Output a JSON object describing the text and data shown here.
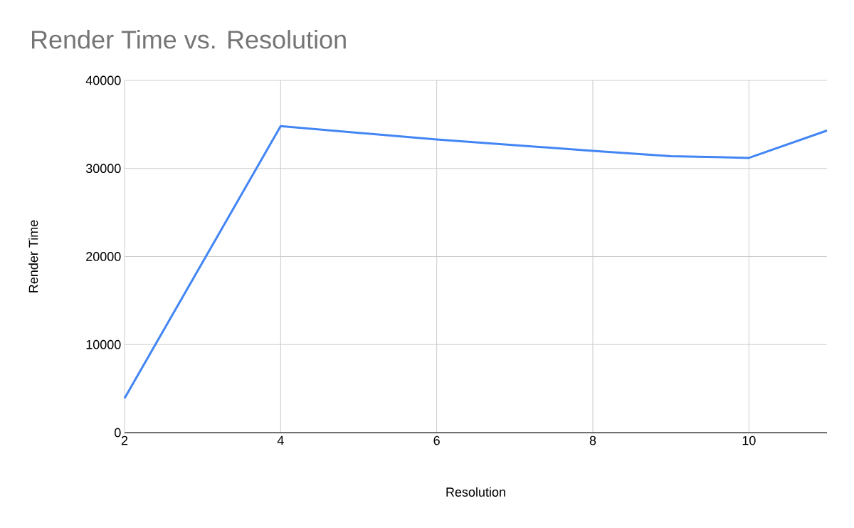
{
  "chart_data": {
    "type": "line",
    "title": "Render Time vs. Resolution",
    "xlabel": "Resolution",
    "ylabel": "Render Time",
    "x": [
      2,
      4,
      6,
      8,
      9,
      10,
      11
    ],
    "values": [
      3900,
      34800,
      33300,
      32000,
      31400,
      31200,
      34300
    ],
    "color": "#4285f4",
    "xlim": [
      2,
      11
    ],
    "xticks": [
      2,
      4,
      6,
      8,
      10
    ],
    "ylim": [
      0,
      40000
    ],
    "yticks": [
      0,
      10000,
      20000,
      30000,
      40000
    ],
    "grid": true
  }
}
